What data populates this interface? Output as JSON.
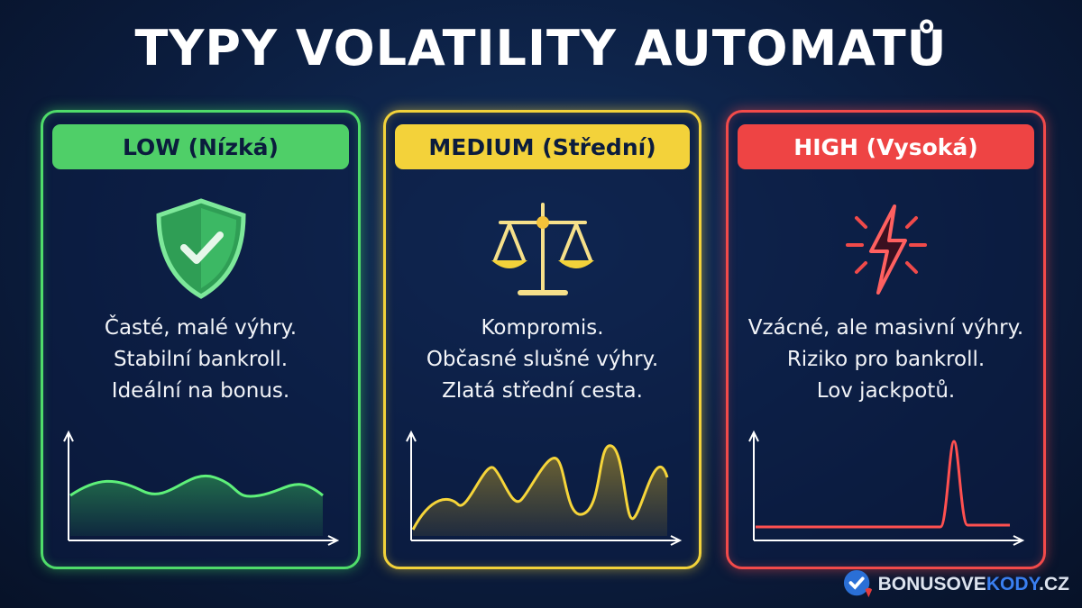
{
  "title": "TYPY VOLATILITY AUTOMATŮ",
  "cards": [
    {
      "label": "LOW (Nízká)",
      "icon": "shield-check-icon",
      "color": "#4fdc6a",
      "lines": [
        "Časté, malé výhry.",
        "Stabilní bankroll.",
        "Ideální na bonus."
      ]
    },
    {
      "label": "MEDIUM (Střední)",
      "icon": "scales-icon",
      "color": "#f2d23a",
      "lines": [
        "Kompromis.",
        "Občasné slušné výhry.",
        "Zlatá střední cesta."
      ]
    },
    {
      "label": "HIGH (Vysoká)",
      "icon": "lightning-icon",
      "color": "#f24a4a",
      "lines": [
        "Vzácné, ale masivní výhry.",
        "Riziko pro bankroll.",
        "Lov jackpotů."
      ]
    }
  ],
  "logo": {
    "part1": "BONUSOVE",
    "part2": "KODY",
    "part3": ".CZ"
  }
}
